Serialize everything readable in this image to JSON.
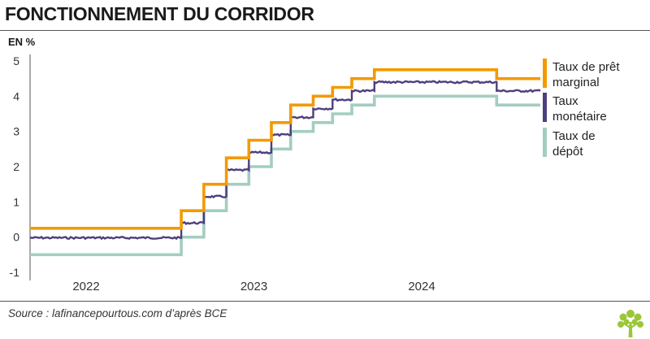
{
  "header": {
    "title": "FONCTIONNEMENT DU CORRIDOR",
    "unit": "EN %"
  },
  "footer": {
    "source": "Source : lafinancepourtous.com d’après BCE"
  },
  "colors": {
    "marginal": "#f29a00",
    "monetaire": "#4e3f7e",
    "depot": "#a3cdc2"
  },
  "chart_data": {
    "type": "line",
    "title": "FONCTIONNEMENT DU CORRIDOR",
    "ylabel": "EN %",
    "ylim": [
      -1,
      5
    ],
    "yticks": [
      "-1",
      "0",
      "1",
      "2",
      "3",
      "4",
      "5"
    ],
    "xlim": [
      "2021-09-01",
      "2024-09-15"
    ],
    "xticks": [
      {
        "label": "2022",
        "date": "2022-01-01"
      },
      {
        "label": "2023",
        "date": "2023-01-01"
      },
      {
        "label": "2024",
        "date": "2024-01-01"
      }
    ],
    "grid": false,
    "legend": "right",
    "series": [
      {
        "name": "Taux de prêt marginal",
        "legend_lines": [
          "Taux de prêt",
          "marginal"
        ],
        "color_key": "marginal",
        "step": true,
        "points": [
          [
            "2021-09-01",
            0.25
          ],
          [
            "2022-07-27",
            0.75
          ],
          [
            "2022-09-14",
            1.5
          ],
          [
            "2022-11-02",
            2.25
          ],
          [
            "2022-12-21",
            2.75
          ],
          [
            "2023-02-08",
            3.25
          ],
          [
            "2023-03-22",
            3.75
          ],
          [
            "2023-05-10",
            4.0
          ],
          [
            "2023-06-21",
            4.25
          ],
          [
            "2023-08-02",
            4.5
          ],
          [
            "2023-09-20",
            4.75
          ],
          [
            "2024-06-12",
            4.5
          ],
          [
            "2024-09-15",
            4.5
          ]
        ]
      },
      {
        "name": "Taux monétaire",
        "legend_lines": [
          "Taux",
          "monétaire"
        ],
        "color_key": "monetaire",
        "step": true,
        "noisy": true,
        "points": [
          [
            "2021-09-01",
            -0.02
          ],
          [
            "2022-07-27",
            0.4
          ],
          [
            "2022-09-14",
            1.15
          ],
          [
            "2022-11-02",
            1.9
          ],
          [
            "2022-12-21",
            2.4
          ],
          [
            "2023-02-08",
            2.9
          ],
          [
            "2023-03-22",
            3.4
          ],
          [
            "2023-05-10",
            3.65
          ],
          [
            "2023-06-21",
            3.9
          ],
          [
            "2023-08-02",
            4.15
          ],
          [
            "2023-09-20",
            4.4
          ],
          [
            "2024-06-12",
            4.15
          ],
          [
            "2024-09-15",
            4.1
          ]
        ]
      },
      {
        "name": "Taux de dépôt",
        "legend_lines": [
          "Taux de",
          "dépôt"
        ],
        "color_key": "depot",
        "step": true,
        "points": [
          [
            "2021-09-01",
            -0.5
          ],
          [
            "2022-07-27",
            0.0
          ],
          [
            "2022-09-14",
            0.75
          ],
          [
            "2022-11-02",
            1.5
          ],
          [
            "2022-12-21",
            2.0
          ],
          [
            "2023-02-08",
            2.5
          ],
          [
            "2023-03-22",
            3.0
          ],
          [
            "2023-05-10",
            3.25
          ],
          [
            "2023-06-21",
            3.5
          ],
          [
            "2023-08-02",
            3.75
          ],
          [
            "2023-09-20",
            4.0
          ],
          [
            "2024-06-12",
            3.75
          ],
          [
            "2024-09-15",
            3.75
          ]
        ]
      }
    ]
  }
}
